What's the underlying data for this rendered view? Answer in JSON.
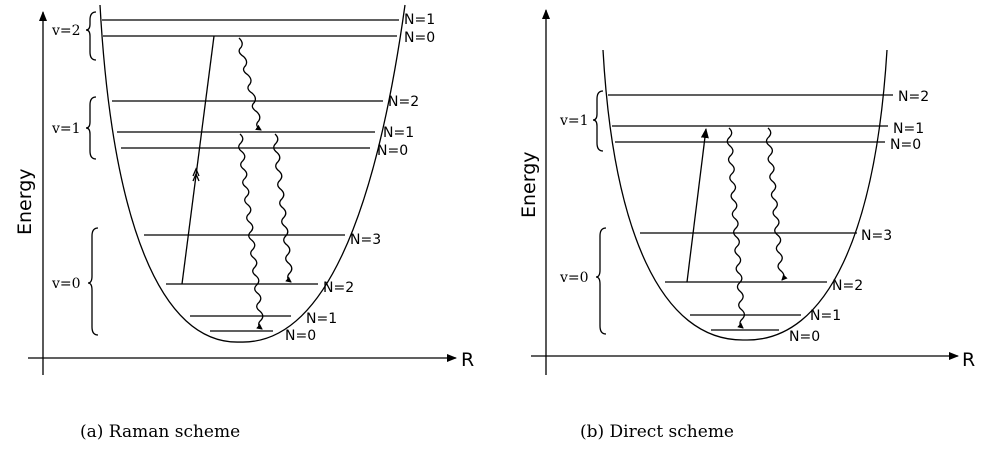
{
  "panel_a": {
    "y_axis_label": "Energy",
    "x_axis_label": "R",
    "caption": "(a) Raman scheme",
    "v2_label": "v=2",
    "v1_label": "v=1",
    "v0_label": "v=0",
    "levels": {
      "v2_n1": "N=1",
      "v2_n0": "N=0",
      "v1_n2": "N=2",
      "v1_n1": "N=1",
      "v1_n0": "N=0",
      "v0_n3": "N=3",
      "v0_n2": "N=2",
      "v0_n1": "N=1",
      "v0_n0": "N=0"
    }
  },
  "panel_b": {
    "y_axis_label": "Energy",
    "x_axis_label": "R",
    "caption": "(b) Direct scheme",
    "v1_label": "v=1",
    "v0_label": "v=0",
    "levels": {
      "v1_n2": "N=2",
      "v1_n1": "N=1",
      "v1_n0": "N=0",
      "v0_n3": "N=3",
      "v0_n2": "N=2",
      "v0_n1": "N=1",
      "v0_n0": "N=0"
    }
  }
}
